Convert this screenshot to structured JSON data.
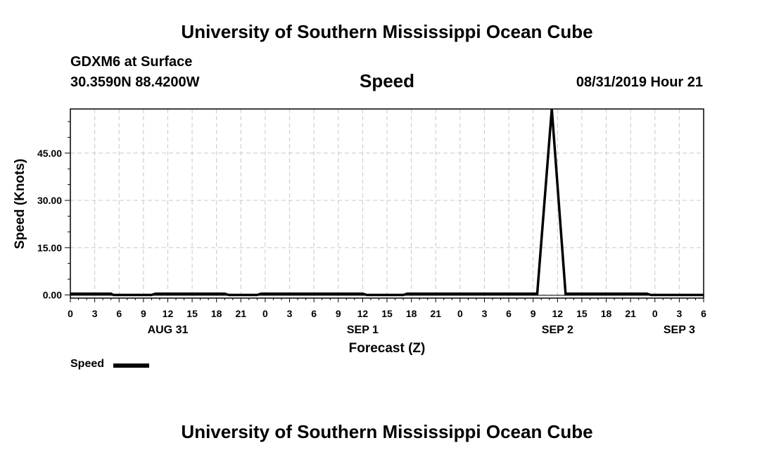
{
  "header": {
    "title": "University of Southern Mississippi Ocean Cube",
    "station": "GDXM6 at Surface",
    "coords": "30.3590N 88.4200W",
    "chart_title": "Speed",
    "valid_time": "08/31/2019 Hour 21"
  },
  "footer": {
    "title": "University of Southern Mississippi Ocean Cube"
  },
  "legend": {
    "label": "Speed",
    "color": "#000000"
  },
  "chart_data": {
    "type": "line",
    "title": "Speed",
    "xlabel": "Forecast (Z)",
    "ylabel": "Speed (Knots)",
    "x_unit": "hours since AUG 31 00Z",
    "xlim": [
      0,
      78
    ],
    "ylim": [
      -1,
      59
    ],
    "grid": true,
    "ytick_values": [
      0,
      15,
      30,
      45
    ],
    "ytick_labels": [
      "0.00",
      "15.00",
      "30.00",
      "45.00"
    ],
    "xtick_values": [
      0,
      3,
      6,
      9,
      12,
      15,
      18,
      21,
      24,
      27,
      30,
      33,
      36,
      39,
      42,
      45,
      48,
      51,
      54,
      57,
      60,
      63,
      66,
      69,
      72,
      75,
      78
    ],
    "xtick_labels": [
      "0",
      "3",
      "6",
      "9",
      "12",
      "15",
      "18",
      "21",
      "0",
      "3",
      "6",
      "9",
      "12",
      "15",
      "18",
      "21",
      "0",
      "3",
      "6",
      "9",
      "12",
      "15",
      "18",
      "21",
      "0",
      "3",
      "6"
    ],
    "date_labels": [
      {
        "label": "AUG 31",
        "x": 12
      },
      {
        "label": "SEP 1",
        "x": 36
      },
      {
        "label": "SEP 2",
        "x": 60
      },
      {
        "label": "SEP 3",
        "x": 75
      }
    ],
    "legend_position": "bottom-left",
    "series": [
      {
        "name": "Speed",
        "x": [
          0,
          5,
          5.3,
          10,
          10.5,
          19,
          19.5,
          23,
          23.5,
          36,
          36.5,
          41,
          41.5,
          53.5,
          55.5,
          57.5,
          59.3,
          61,
          71,
          71.5,
          78
        ],
        "values": [
          0.4,
          0.4,
          0,
          0,
          0.4,
          0.4,
          0,
          0,
          0.4,
          0.4,
          0,
          0,
          0.4,
          0.4,
          0.4,
          0.4,
          59,
          0.4,
          0.4,
          0,
          0
        ]
      }
    ]
  }
}
